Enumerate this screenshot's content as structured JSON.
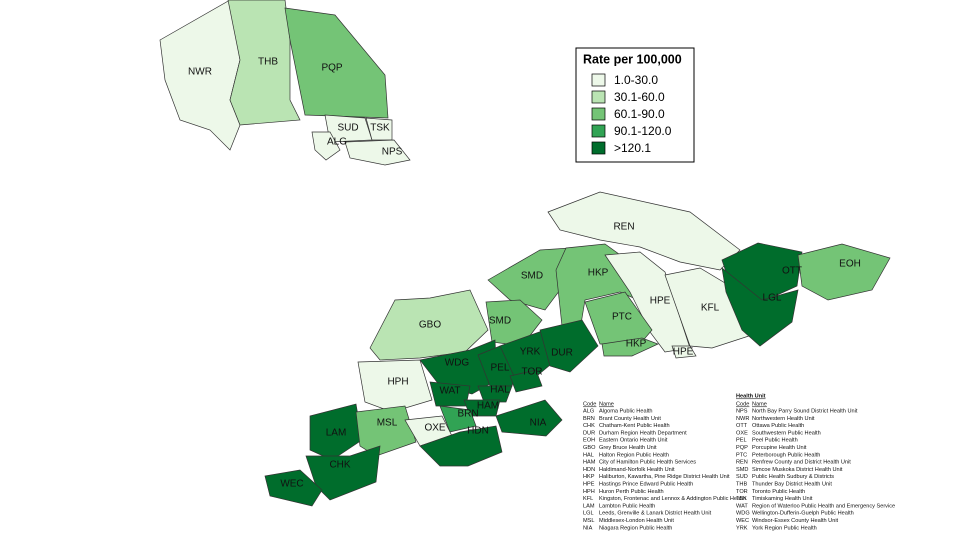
{
  "legend": {
    "title": "Rate per 100,000",
    "items": [
      {
        "label": "1.0-30.0",
        "color": "#edf8e9"
      },
      {
        "label": "30.1-60.0",
        "color": "#bae4b3"
      },
      {
        "label": "60.1-90.0",
        "color": "#74c476"
      },
      {
        "label": "90.1-120.0",
        "color": "#31a354"
      },
      {
        "label": ">120.1",
        "color": "#006d2c"
      }
    ]
  },
  "map": {
    "regions": [
      {
        "code": "NWR",
        "color": "#edf8e9"
      },
      {
        "code": "THB",
        "color": "#bae4b3"
      },
      {
        "code": "PQP",
        "color": "#74c476"
      },
      {
        "code": "SUD",
        "color": "#edf8e9"
      },
      {
        "code": "TSK",
        "color": "#edf8e9"
      },
      {
        "code": "ALG",
        "color": "#edf8e9"
      },
      {
        "code": "NPS",
        "color": "#edf8e9"
      },
      {
        "code": "REN",
        "color": "#edf8e9"
      },
      {
        "code": "SMD",
        "color": "#74c476"
      },
      {
        "code": "HKP",
        "color": "#74c476"
      },
      {
        "code": "HPE",
        "color": "#edf8e9"
      },
      {
        "code": "KFL",
        "color": "#edf8e9"
      },
      {
        "code": "OTT",
        "color": "#006d2c"
      },
      {
        "code": "EOH",
        "color": "#74c476"
      },
      {
        "code": "LGL",
        "color": "#006d2c"
      },
      {
        "code": "GBO",
        "color": "#bae4b3"
      },
      {
        "code": "SMD",
        "color": "#74c476"
      },
      {
        "code": "PTC",
        "color": "#74c476"
      },
      {
        "code": "HKP",
        "color": "#74c476"
      },
      {
        "code": "WDG",
        "color": "#006d2c"
      },
      {
        "code": "PEL",
        "color": "#006d2c"
      },
      {
        "code": "YRK",
        "color": "#006d2c"
      },
      {
        "code": "DUR",
        "color": "#006d2c"
      },
      {
        "code": "TOR",
        "color": "#006d2c"
      },
      {
        "code": "HPH",
        "color": "#edf8e9"
      },
      {
        "code": "WAT",
        "color": "#006d2c"
      },
      {
        "code": "HAL",
        "color": "#006d2c"
      },
      {
        "code": "HAM",
        "color": "#006d2c"
      },
      {
        "code": "BRN",
        "color": "#31a354"
      },
      {
        "code": "LAM",
        "color": "#006d2c"
      },
      {
        "code": "MSL",
        "color": "#74c476"
      },
      {
        "code": "OXE",
        "color": "#edf8e9"
      },
      {
        "code": "HDN",
        "color": "#006d2c"
      },
      {
        "code": "NIA",
        "color": "#006d2c"
      },
      {
        "code": "CHK",
        "color": "#006d2c"
      },
      {
        "code": "WEC",
        "color": "#006d2c"
      },
      {
        "code": "HPE",
        "color": "#edf8e9"
      }
    ]
  },
  "table": {
    "title": "Health Unit",
    "headers": [
      "Code",
      "Name"
    ],
    "left": [
      [
        "ALG",
        "Algoma Public Health"
      ],
      [
        "BRN",
        "Brant County Health Unit"
      ],
      [
        "CHK",
        "Chatham-Kent Public Health"
      ],
      [
        "DUR",
        "Durham Region Health Department"
      ],
      [
        "EOH",
        "Eastern Ontario Health Unit"
      ],
      [
        "GBO",
        "Grey Bruce Health Unit"
      ],
      [
        "HAL",
        "Halton Region Public Health"
      ],
      [
        "HAM",
        "City of Hamilton Public Health Services"
      ],
      [
        "HDN",
        "Haldimand-Norfolk Health Unit"
      ],
      [
        "HKP",
        "Haliburton, Kawartha, Pine Ridge District Health Unit"
      ],
      [
        "HPE",
        "Hastings Prince Edward Public Health"
      ],
      [
        "HPH",
        "Huron Perth Public Health"
      ],
      [
        "KFL",
        "Kingston, Frontenac and Lennox & Addington Public Health"
      ],
      [
        "LAM",
        "Lambton Public Health"
      ],
      [
        "LGL",
        "Leeds, Grenville & Lanark District Health Unit"
      ],
      [
        "MSL",
        "Middlesex-London Health Unit"
      ],
      [
        "NIA",
        "Niagara Region Public Health"
      ]
    ],
    "right": [
      [
        "NPS",
        "North Bay Parry Sound District Health Unit"
      ],
      [
        "NWR",
        "Northwestern Health Unit"
      ],
      [
        "OTT",
        "Ottawa Public Health"
      ],
      [
        "OXE",
        "Southwestern Public Health"
      ],
      [
        "PEL",
        "Peel Public Health"
      ],
      [
        "PQP",
        "Porcupine Health Unit"
      ],
      [
        "PTC",
        "Peterborough Public Health"
      ],
      [
        "REN",
        "Renfrew County and District Health Unit"
      ],
      [
        "SMD",
        "Simcoe Muskoka District Health Unit"
      ],
      [
        "SUD",
        "Public Health Sudbury & Districts"
      ],
      [
        "THB",
        "Thunder Bay District Health Unit"
      ],
      [
        "TOR",
        "Toronto Public Health"
      ],
      [
        "TSK",
        "Timiskaming Health Unit"
      ],
      [
        "WAT",
        "Region of Waterloo Public Health and Emergency Service"
      ],
      [
        "WDG",
        "Wellington-Dufferin-Guelph Public Health"
      ],
      [
        "WEC",
        "Windsor-Essex County Health Unit"
      ],
      [
        "YRK",
        "York Region Public Health"
      ]
    ]
  }
}
